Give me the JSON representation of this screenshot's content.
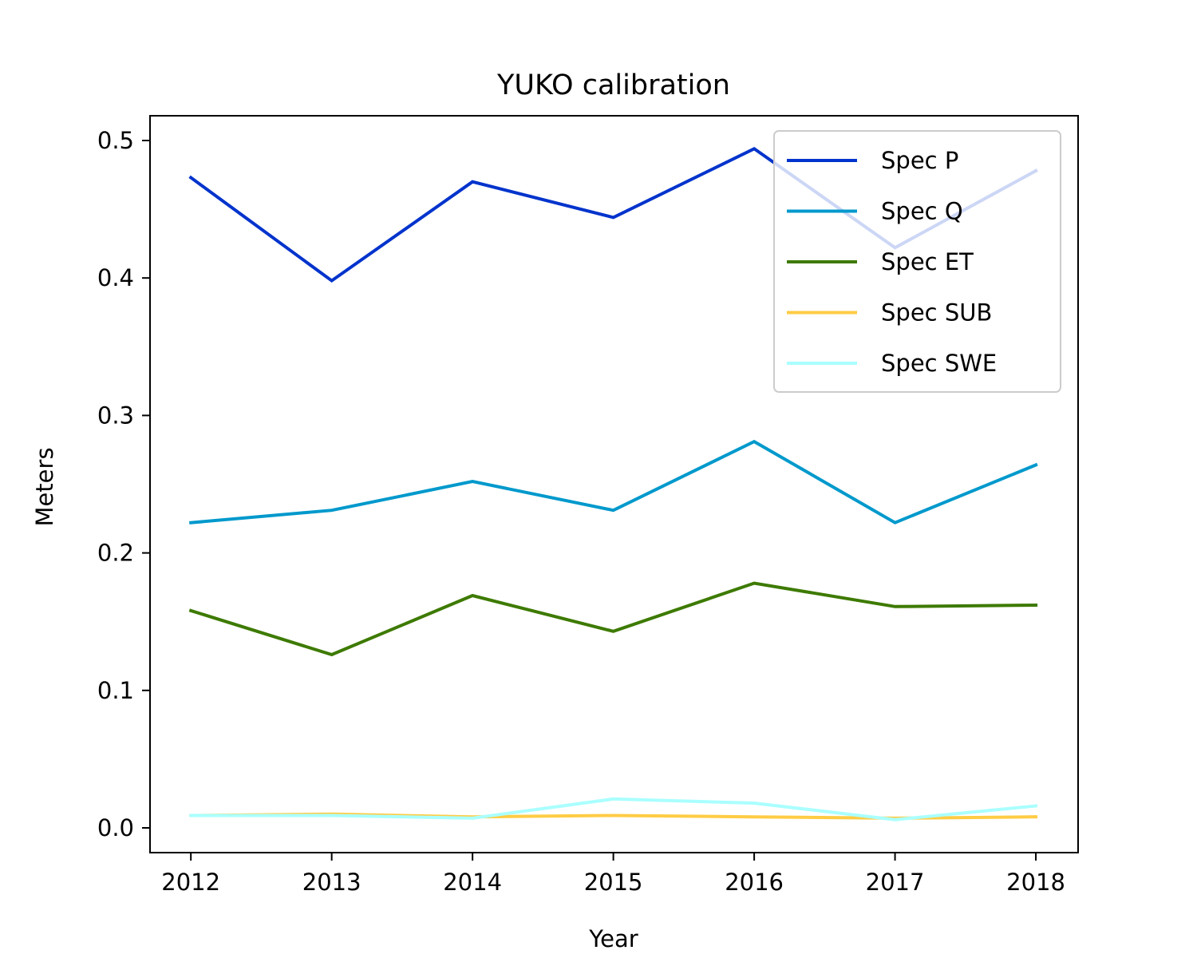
{
  "chart_data": {
    "type": "line",
    "title": "YUKO calibration",
    "xlabel": "Year",
    "ylabel": "Meters",
    "x": [
      2012,
      2013,
      2014,
      2015,
      2016,
      2017,
      2018
    ],
    "xticks": [
      "2012",
      "2013",
      "2014",
      "2015",
      "2016",
      "2017",
      "2018"
    ],
    "yticks": [
      "0.0",
      "0.1",
      "0.2",
      "0.3",
      "0.4",
      "0.5"
    ],
    "ytick_values": [
      0.0,
      0.1,
      0.2,
      0.3,
      0.4,
      0.5
    ],
    "xlim": [
      2011.71,
      2018.3
    ],
    "ylim": [
      -0.018,
      0.518
    ],
    "grid": false,
    "legend_position": "top-right",
    "series": [
      {
        "name": "Spec P",
        "color": "#0033cc",
        "values": [
          0.473,
          0.398,
          0.47,
          0.444,
          0.494,
          0.422,
          0.478
        ]
      },
      {
        "name": "Spec Q",
        "color": "#0099cc",
        "values": [
          0.222,
          0.231,
          0.252,
          0.231,
          0.281,
          0.222,
          0.264
        ]
      },
      {
        "name": "Spec ET",
        "color": "#3d7a00",
        "values": [
          0.158,
          0.126,
          0.169,
          0.143,
          0.178,
          0.161,
          0.162
        ]
      },
      {
        "name": "Spec SUB",
        "color": "#ffcc44",
        "values": [
          0.009,
          0.01,
          0.008,
          0.009,
          0.008,
          0.007,
          0.008
        ]
      },
      {
        "name": "Spec SWE",
        "color": "#aaffff",
        "values": [
          0.009,
          0.009,
          0.007,
          0.021,
          0.018,
          0.006,
          0.016
        ]
      }
    ]
  }
}
